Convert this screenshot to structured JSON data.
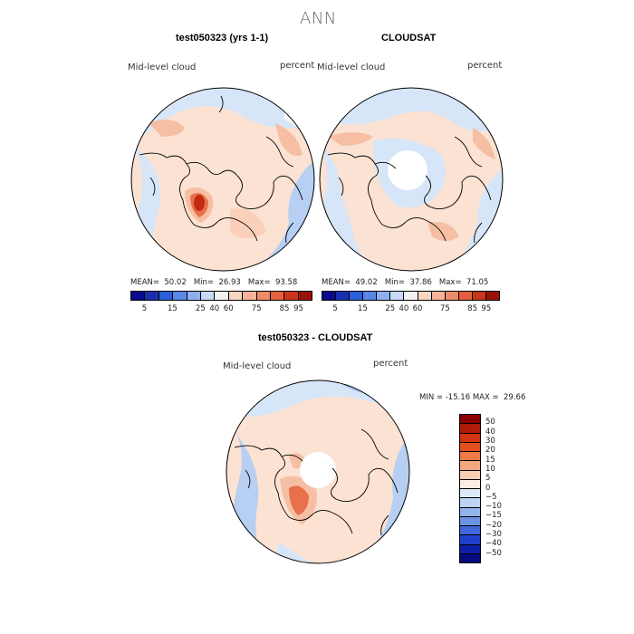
{
  "main_title": "ANN",
  "panels": [
    {
      "title": "test050323 (yrs 1-1)",
      "left_label": "Mid-level cloud",
      "right_label": "percent",
      "stats": "MEAN=  50.02   Min=  26.93   Max=  93.58"
    },
    {
      "title": "CLOUDSAT",
      "left_label": "Mid-level cloud",
      "right_label": "percent",
      "stats": "MEAN=  49.02   Min=  37.86   Max=  71.05"
    },
    {
      "title": "test050323 - CLOUDSAT",
      "left_label": "Mid-level cloud",
      "right_label": "percent",
      "stats": "MIN = -15.16 MAX =  29.66"
    }
  ],
  "colorbar_abs": {
    "colors": [
      "#0a0a8c",
      "#1a2fb0",
      "#2b5fd9",
      "#5a86e8",
      "#8fb0f0",
      "#c7daf7",
      "#f2f2f2",
      "#f9d6c2",
      "#f5b49a",
      "#ef8b6b",
      "#e4603f",
      "#c9351c",
      "#9a1208"
    ],
    "ticks": [
      "5",
      "15",
      "25",
      "40",
      "60",
      "75",
      "85",
      "95"
    ]
  },
  "colorbar_diff": {
    "colors": [
      "#8b0000",
      "#b01a08",
      "#d1340e",
      "#e24f20",
      "#ef7a48",
      "#f5a77f",
      "#f9cfb4",
      "#faeee4",
      "#dde9f7",
      "#bcd3f2",
      "#93b5ec",
      "#6b92e3",
      "#3f66db",
      "#1f3fca",
      "#0d1fa8",
      "#050b7e"
    ],
    "ticks": [
      "50",
      "40",
      "30",
      "20",
      "15",
      "10",
      "5",
      "0",
      "−5",
      "−10",
      "−15",
      "−20",
      "−30",
      "−40",
      "−50"
    ]
  },
  "map_colors": {
    "ocean_light": "#d6e6f8",
    "ocean_blue": "#b7cff2",
    "warm_light": "#fbe2d3",
    "warm_mid": "#f6bfa3",
    "warm_strong": "#e8704a",
    "hot": "#c22a12"
  }
}
